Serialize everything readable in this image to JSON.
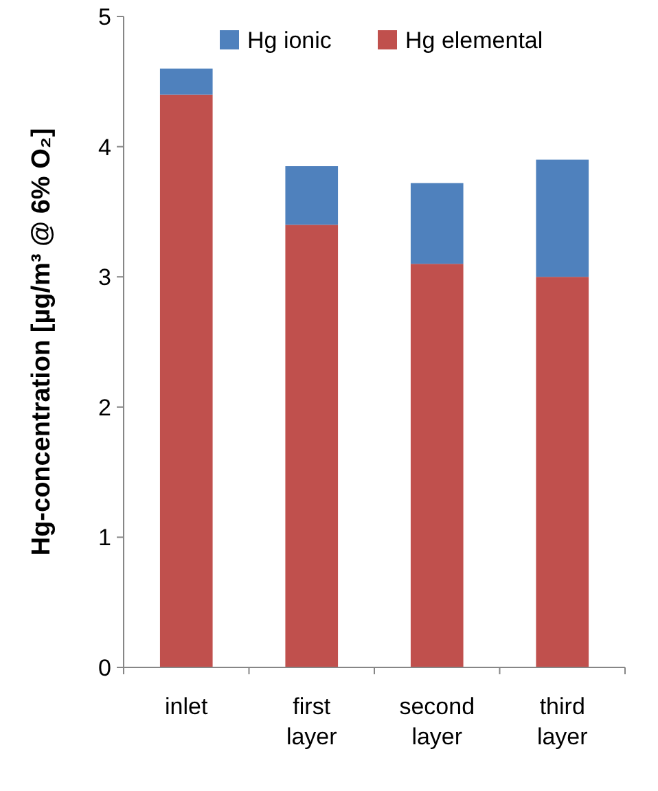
{
  "chart_data": {
    "type": "bar",
    "stacked": true,
    "ylabel": "Hg-concentration [µg/m³ @ 6% O₂]",
    "categories": [
      "inlet",
      "first layer",
      "second layer",
      "third layer"
    ],
    "series": [
      {
        "name": "Hg elemental",
        "color": "#c0504d",
        "values": [
          4.4,
          3.4,
          3.1,
          3.0
        ]
      },
      {
        "name": "Hg ionic",
        "color": "#4f81bd",
        "values": [
          0.2,
          0.45,
          0.62,
          0.9
        ]
      }
    ],
    "ylim": [
      0,
      5
    ],
    "yticks": [
      0,
      1,
      2,
      3,
      4,
      5
    ],
    "legend": "top"
  }
}
